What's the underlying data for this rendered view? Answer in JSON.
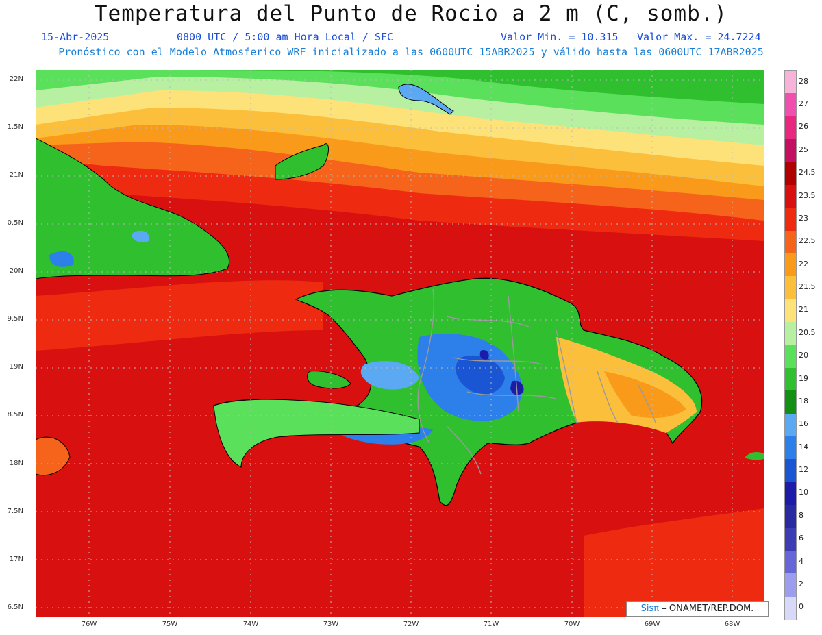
{
  "header": {
    "title": "Temperatura del Punto de Rocio a 2 m (C, somb.)",
    "date": "15-Abr-2025",
    "time": "0800 UTC / 5:00 am Hora Local / SFC",
    "vmin": "Valor Min. = 10.315",
    "vmax": "Valor Max. = 24.7224",
    "model": "Pronóstico con el Modelo Atmosferico WRF inicializado a las 0600UTC_15ABR2025 y válido hasta las  0600UTC_17ABR2025"
  },
  "axes": {
    "lat_labels": [
      "22N",
      "1.5N",
      "21N",
      "0.5N",
      "20N",
      "9.5N",
      "19N",
      "8.5N",
      "18N",
      "7.5N",
      "17N",
      "6.5N"
    ],
    "lon_labels": [
      "76W",
      "75W",
      "74W",
      "73W",
      "72W",
      "71W",
      "70W",
      "69W",
      "68W"
    ]
  },
  "colorbar": {
    "labels": [
      "28",
      "27",
      "26",
      "25",
      "24.5",
      "23.5",
      "23",
      "22.5",
      "22",
      "21.5",
      "21",
      "20.5",
      "20",
      "19",
      "18",
      "16",
      "14",
      "12",
      "10",
      "8",
      "6",
      "4",
      "2",
      "0"
    ],
    "colors": [
      "#f7b4d8",
      "#f04fb0",
      "#e8287e",
      "#c41060",
      "#b00000",
      "#d81010",
      "#ee2a10",
      "#f5641a",
      "#f99a1a",
      "#fbbf3c",
      "#fde27a",
      "#b7f0a0",
      "#5ae05a",
      "#2fbf2f",
      "#138f13",
      "#5aa9f2",
      "#2d7fea",
      "#1a55d4",
      "#1c1ca8",
      "#2a2aa0",
      "#3c3cb4",
      "#6666d8",
      "#9d9df0",
      "#d8d8f8"
    ]
  },
  "credit": {
    "brand": "Sisπ",
    "org": "– ONAMET/REP.DOM."
  }
}
